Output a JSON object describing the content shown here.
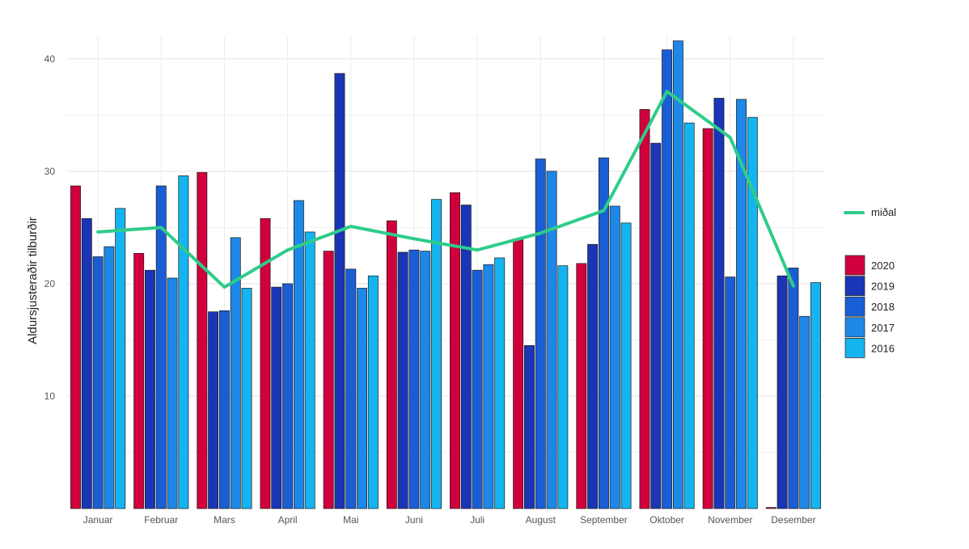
{
  "chart_data": {
    "type": "bar",
    "ylabel": "Aldursjusteraðir tilburðir",
    "xlabel": "",
    "ylim": [
      0,
      42
    ],
    "yticks": [
      10,
      20,
      30,
      40
    ],
    "grid": true,
    "categories": [
      "Januar",
      "Februar",
      "Mars",
      "April",
      "Mai",
      "Juni",
      "Juli",
      "August",
      "September",
      "Oktober",
      "November",
      "Desember"
    ],
    "series": [
      {
        "name": "2020",
        "color": "#d0003c",
        "values": [
          28.7,
          22.7,
          29.9,
          25.8,
          22.9,
          25.6,
          28.1,
          24.0,
          21.8,
          35.5,
          33.8,
          0.1
        ]
      },
      {
        "name": "2019",
        "color": "#1a35b5",
        "values": [
          25.8,
          21.2,
          17.5,
          19.7,
          38.7,
          22.8,
          27.0,
          14.5,
          23.5,
          32.5,
          36.5,
          20.7
        ]
      },
      {
        "name": "2018",
        "color": "#1a5ed6",
        "values": [
          22.4,
          28.7,
          17.6,
          20.0,
          21.3,
          23.0,
          21.2,
          31.1,
          31.2,
          40.8,
          20.6,
          21.4
        ]
      },
      {
        "name": "2017",
        "color": "#1e88e8",
        "values": [
          23.3,
          20.5,
          24.1,
          27.4,
          19.6,
          22.9,
          21.7,
          30.0,
          26.9,
          41.6,
          36.4,
          17.1
        ]
      },
      {
        "name": "2016",
        "color": "#14b4f0",
        "values": [
          26.7,
          29.6,
          19.6,
          24.6,
          20.7,
          27.5,
          22.3,
          21.6,
          25.4,
          34.3,
          34.8,
          20.1
        ]
      }
    ],
    "line": {
      "name": "miðal",
      "color": "#2ecc8a",
      "values": [
        24.6,
        25.0,
        19.7,
        23.0,
        25.1,
        24.0,
        23.0,
        24.5,
        26.5,
        37.1,
        33.0,
        19.8
      ]
    },
    "legend_position": "right"
  }
}
